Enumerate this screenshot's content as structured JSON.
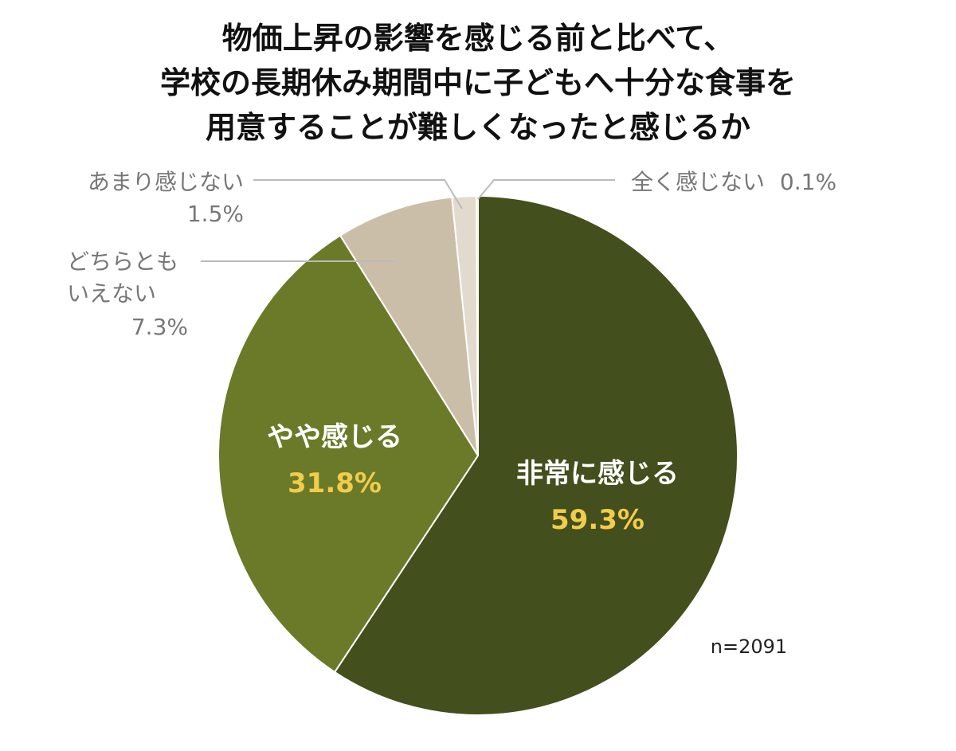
{
  "chart_data": {
    "type": "pie",
    "title_lines": [
      "物価上昇の影響を感じる前と比べて、",
      "学校の長期休み期間中に子どもへ十分な食事を",
      "用意することが難しくなったと感じるか"
    ],
    "sample_size": "n=2091",
    "slices": [
      {
        "label": "非常に感じる",
        "value": 59.3,
        "value_label": "59.3%",
        "color": "#434f1c",
        "label_position": "inside"
      },
      {
        "label": "やや感じる",
        "value": 31.8,
        "value_label": "31.8%",
        "color": "#6a7a28",
        "label_position": "inside"
      },
      {
        "label_lines": [
          "どちらとも",
          "いえない"
        ],
        "value": 7.3,
        "value_label": "7.3%",
        "color": "#cbbea8",
        "label_position": "outside-left"
      },
      {
        "label": "あまり感じない",
        "value": 1.5,
        "value_label": "1.5%",
        "color": "#e2dacd",
        "label_position": "outside-top-left"
      },
      {
        "label": "全く感じない",
        "value": 0.1,
        "value_label": "0.1%",
        "color": "#f1ede6",
        "label_position": "outside-top-right"
      }
    ],
    "start_angle": "12 o'clock",
    "direction": "clockwise"
  }
}
